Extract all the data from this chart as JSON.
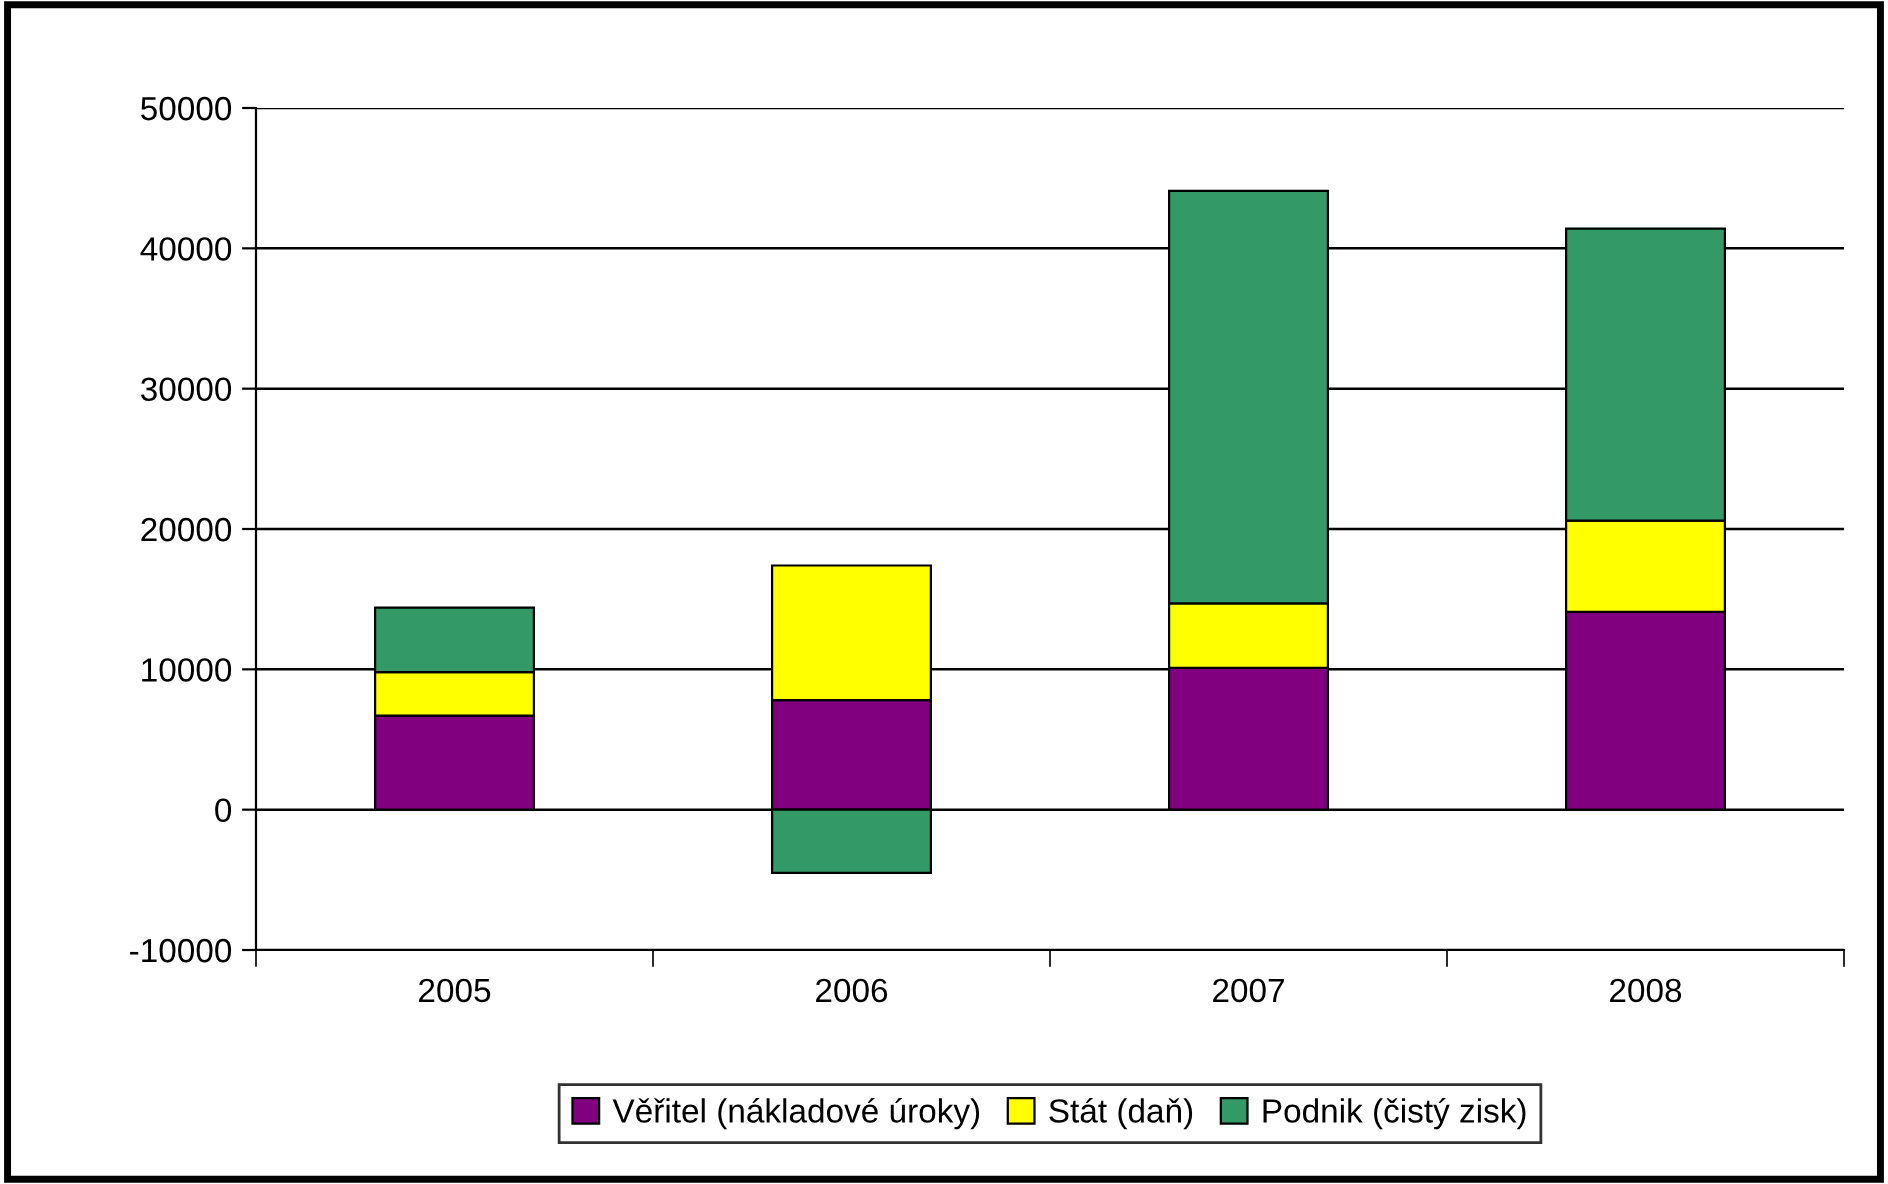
{
  "chart_data": {
    "type": "bar",
    "stacked": true,
    "categories": [
      "2005",
      "2006",
      "2007",
      "2008"
    ],
    "series": [
      {
        "name": "Věřitel (nákladové úroky)",
        "color": "#800080",
        "values": [
          6700,
          7800,
          10100,
          14100
        ]
      },
      {
        "name": "Stát (daň)",
        "color": "#ffff00",
        "values": [
          3100,
          9600,
          4600,
          6500
        ]
      },
      {
        "name": "Podnik (čistý zisk)",
        "color": "#339966",
        "values": [
          4600,
          -4500,
          29400,
          20800
        ]
      }
    ],
    "ylim": [
      -10000,
      50000
    ],
    "yticks": [
      -10000,
      0,
      10000,
      20000,
      30000,
      40000,
      50000
    ],
    "grid": "y",
    "legend": "bottom"
  }
}
